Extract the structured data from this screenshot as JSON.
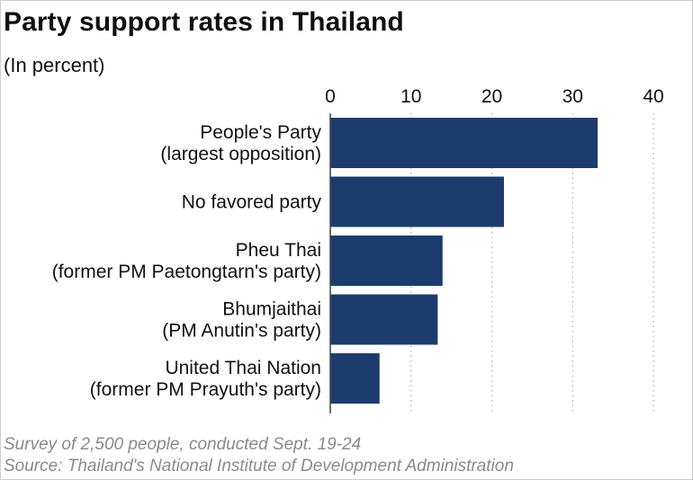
{
  "header": {
    "title": "Party support rates in Thailand",
    "subtitle": "(In percent)"
  },
  "footer": {
    "note": "Survey of 2,500 people, conducted Sept. 19-24",
    "source": "Source: Thailand's National Institute of Development Administration"
  },
  "chart_data": {
    "type": "bar",
    "orientation": "horizontal",
    "categories": [
      [
        "People's Party",
        "(largest opposition)"
      ],
      [
        "No favored party"
      ],
      [
        "Pheu Thai",
        "(former PM Paetongtarn's party)"
      ],
      [
        "Bhumjaithai",
        "(PM Anutin's party)"
      ],
      [
        "United Thai Nation",
        "(former PM Prayuth's party)"
      ]
    ],
    "values": [
      33.1,
      21.5,
      13.9,
      13.3,
      6.1
    ],
    "xlim": [
      0,
      40
    ],
    "xticks": [
      "0",
      "10",
      "20",
      "30",
      "40"
    ],
    "grid": true,
    "bar_color": "#1d3c6e"
  }
}
